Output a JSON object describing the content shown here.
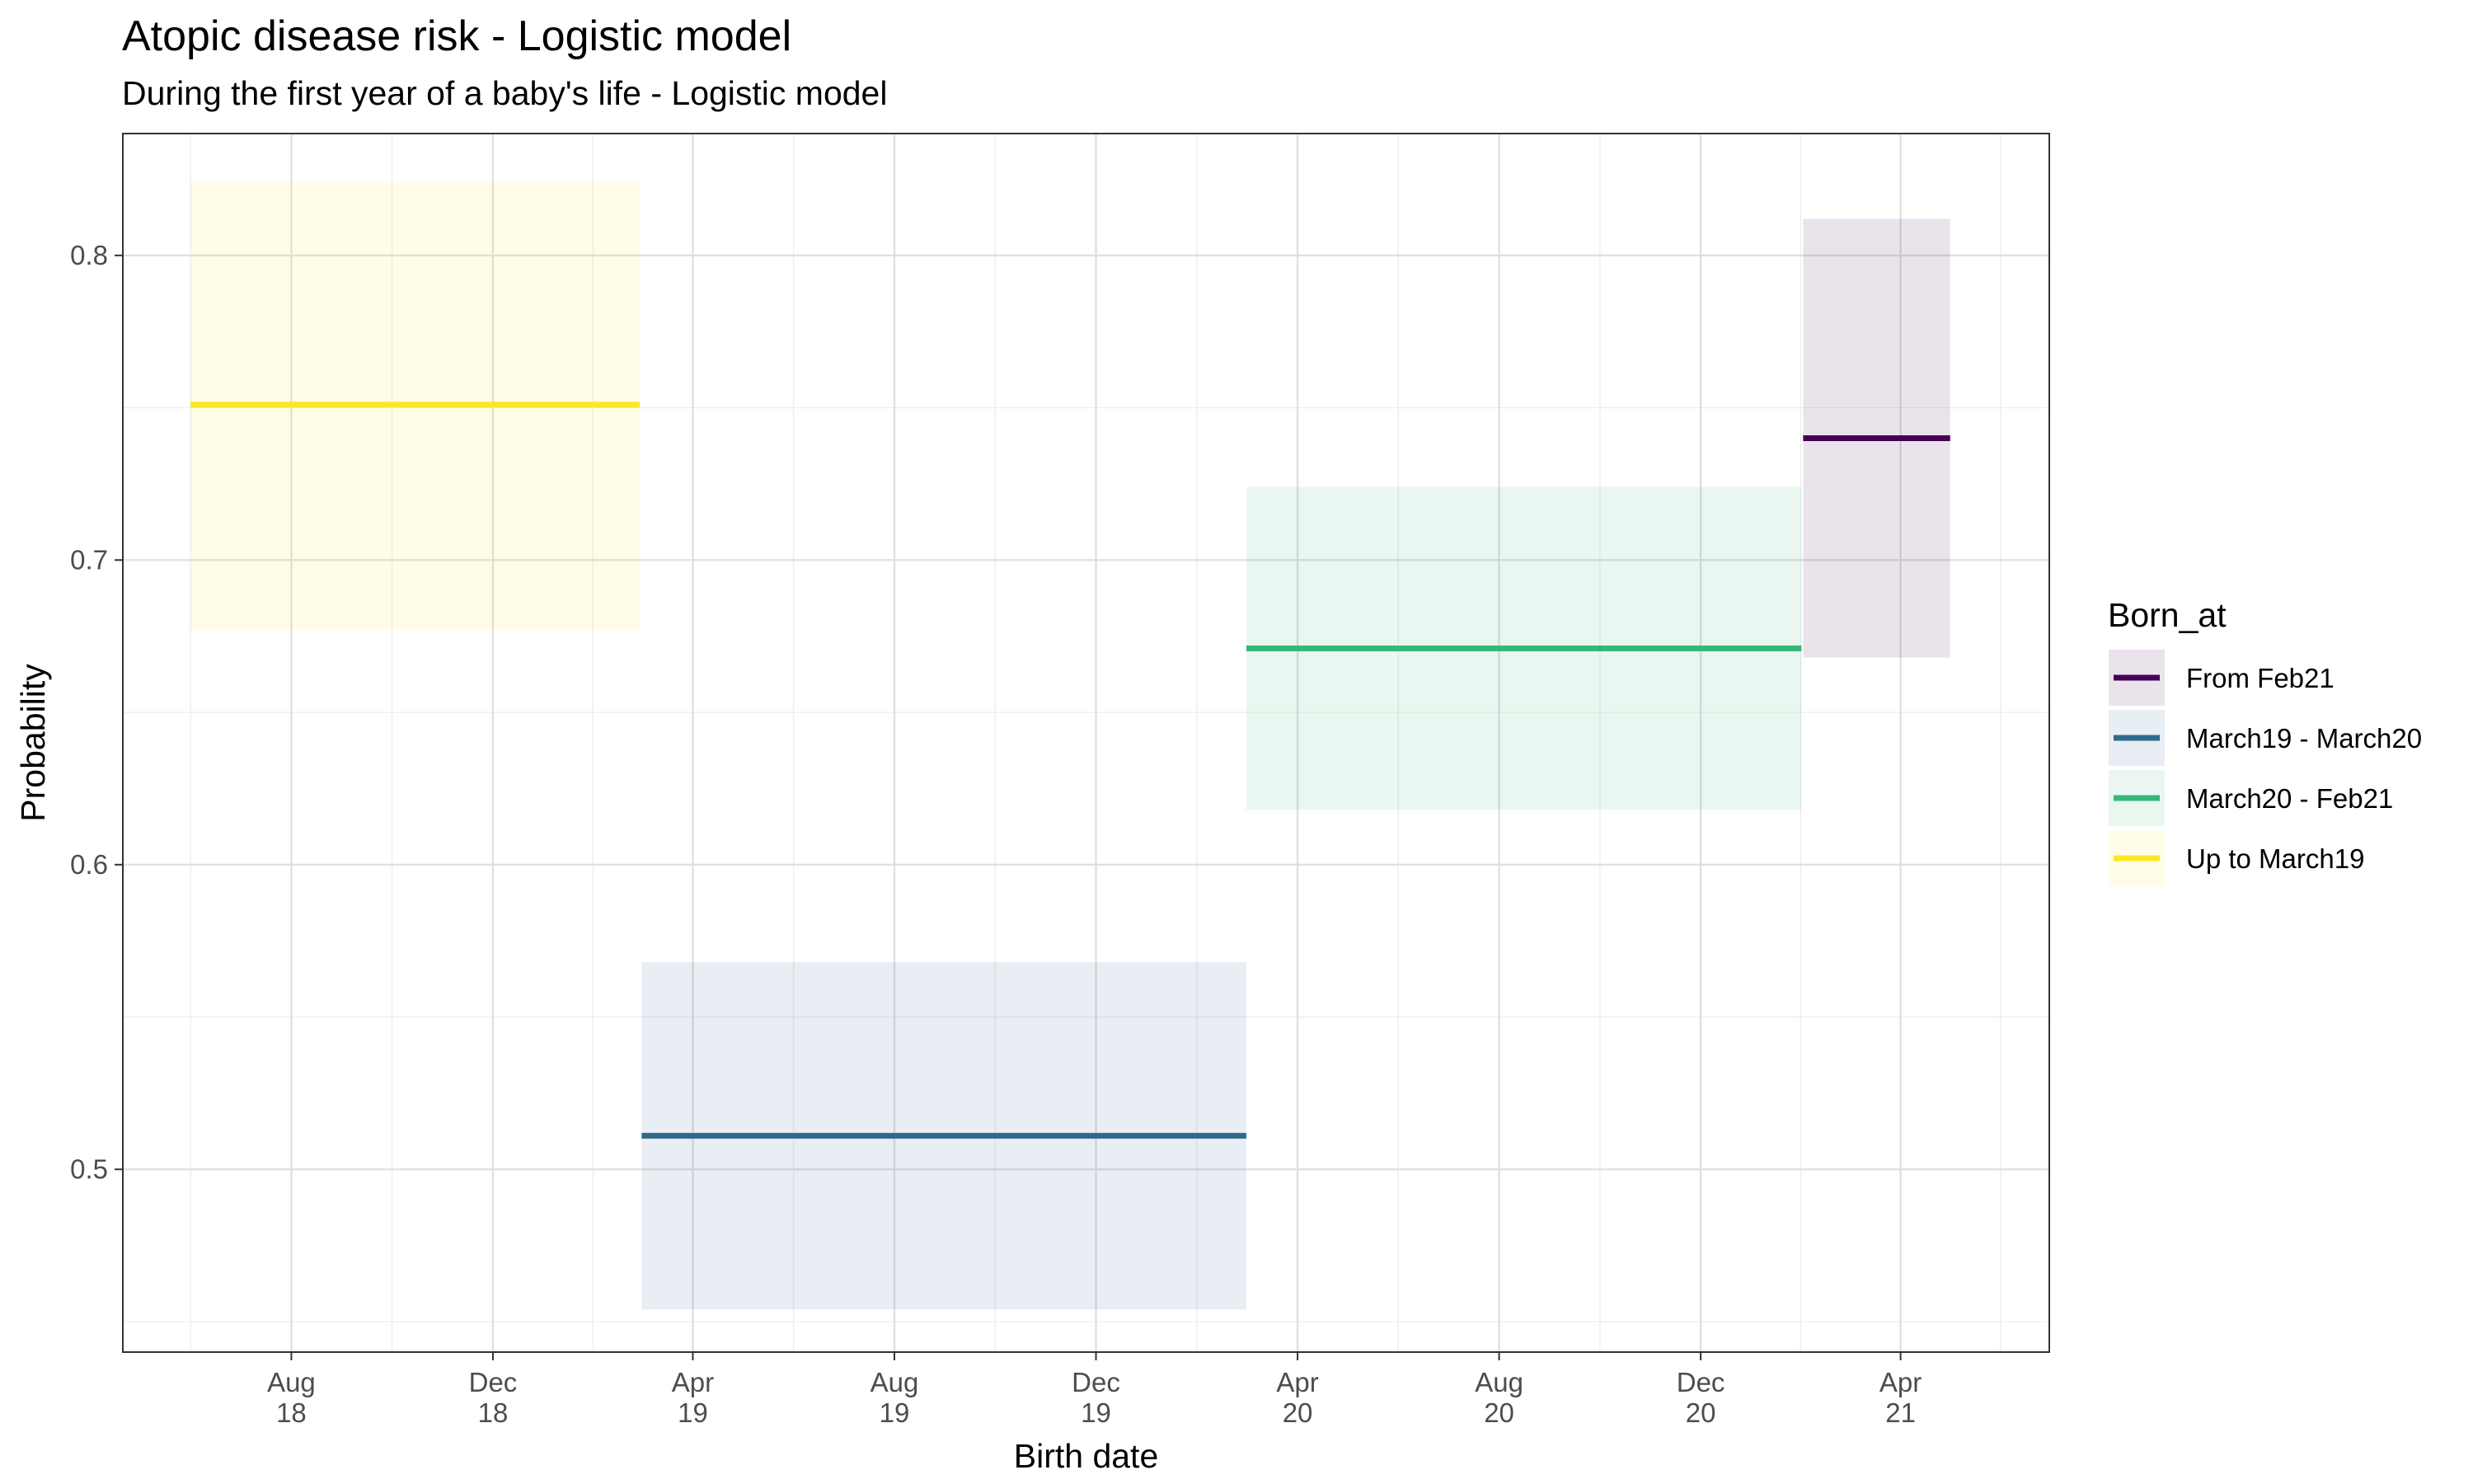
{
  "chart_data": {
    "type": "line",
    "title": "Atopic disease risk - Logistic model",
    "subtitle": "During the first year of a baby's life - Logistic model",
    "xlabel": "Birth date",
    "ylabel": "Probability",
    "x_axis_type": "date",
    "xlim": [
      "2018-04-21",
      "2021-06-30"
    ],
    "ylim": [
      0.44,
      0.84
    ],
    "grid": true,
    "x_ticks": [
      {
        "date": "2018-08-01",
        "line1": "Aug",
        "line2": "18"
      },
      {
        "date": "2018-12-01",
        "line1": "Dec",
        "line2": "18"
      },
      {
        "date": "2019-04-01",
        "line1": "Apr",
        "line2": "19"
      },
      {
        "date": "2019-08-01",
        "line1": "Aug",
        "line2": "19"
      },
      {
        "date": "2019-12-01",
        "line1": "Dec",
        "line2": "19"
      },
      {
        "date": "2020-04-01",
        "line1": "Apr",
        "line2": "20"
      },
      {
        "date": "2020-08-01",
        "line1": "Aug",
        "line2": "20"
      },
      {
        "date": "2020-12-01",
        "line1": "Dec",
        "line2": "20"
      },
      {
        "date": "2021-04-01",
        "line1": "Apr",
        "line2": "21"
      }
    ],
    "y_ticks": [
      0.5,
      0.6,
      0.7,
      0.8
    ],
    "legend_title": "Born_at",
    "legend_position": "right",
    "series": [
      {
        "name": "From Feb21",
        "color": "#440154",
        "x_start": "2021-02-01",
        "x_end": "2021-05-01",
        "value": 0.74,
        "lower": 0.668,
        "upper": 0.812
      },
      {
        "name": "March19 - March20",
        "color": "#31688E",
        "x_start": "2019-03-01",
        "x_end": "2020-03-01",
        "value": 0.511,
        "lower": 0.454,
        "upper": 0.568
      },
      {
        "name": "March20 - Feb21",
        "color": "#35B779",
        "x_start": "2020-03-01",
        "x_end": "2021-01-31",
        "value": 0.671,
        "lower": 0.618,
        "upper": 0.724
      },
      {
        "name": "Up to March19",
        "color": "#FDE725",
        "x_start": "2018-06-01",
        "x_end": "2019-02-28",
        "value": 0.751,
        "lower": 0.677,
        "upper": 0.824
      }
    ]
  }
}
